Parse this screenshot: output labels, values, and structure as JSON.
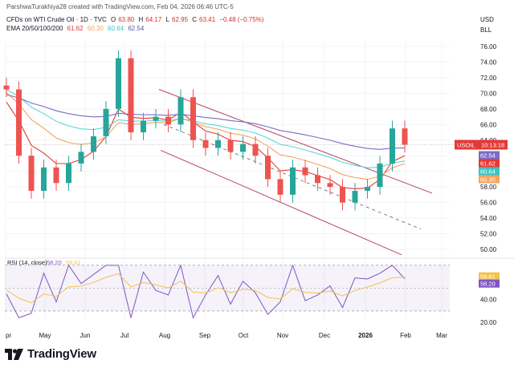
{
  "header": {
    "credit": "ParshwaTurakhiya28 created with TradingView.com, Feb 04, 2026 06:46 UTC-5",
    "symbol": "CFDs on WTI Crude Oil · 1D · TVC",
    "ohlc": [
      {
        "label": "O",
        "value": "63.80"
      },
      {
        "label": "H",
        "value": "64.17"
      },
      {
        "label": "L",
        "value": "62.95"
      },
      {
        "label": "C",
        "value": "63.41"
      }
    ],
    "change": "−0.48 (−0.75%)",
    "ema_label": "EMA 20/50/100/200",
    "ema_values": [
      "61.62",
      "60.30",
      "60.64",
      "62.54"
    ]
  },
  "currency": "USD",
  "currency_unit": "BLL",
  "symbol_tag": "USOIL",
  "last_price": "63.41",
  "countdown": "10:13:18",
  "rsi": {
    "label": "RSI (14, close)",
    "value": "58.20",
    "ma_value": "59.61",
    "ticks": [
      20.0,
      40.0,
      60.0
    ],
    "upper_band": 70,
    "lower_band": 30,
    "mid_band": 50
  },
  "colors": {
    "up": "#26a69a",
    "down": "#ef5350",
    "ema20": "#e53935",
    "ema50": "#f5a35c",
    "ema100": "#5ed6d6",
    "ema200": "#7b6cc4",
    "channel": "#b5475f",
    "rsi_line": "#7e57c2",
    "rsi_ma": "#f5c24a",
    "price_tag": "#e53935"
  },
  "logo": "TradingView",
  "chart_data": {
    "type": "candlestick",
    "title": "CFDs on WTI Crude Oil · 1D · TVC",
    "ylabel": "USD",
    "ylim": [
      48,
      78
    ],
    "y_ticks": [
      50.0,
      52.0,
      54.0,
      56.0,
      58.0,
      60.0,
      62.0,
      64.0,
      66.0,
      68.0,
      70.0,
      72.0,
      74.0,
      76.0
    ],
    "x_ticks": [
      "pr",
      "May",
      "Jun",
      "Jul",
      "Aug",
      "Sep",
      "Oct",
      "Nov",
      "Dec",
      "2026",
      "Feb",
      "Mar"
    ],
    "candles_approx": [
      {
        "month": "Apr",
        "close": 70.5
      },
      {
        "month": "Apr",
        "close": 62.0
      },
      {
        "month": "Apr",
        "close": 57.5
      },
      {
        "month": "Apr",
        "close": 60.5
      },
      {
        "month": "May",
        "close": 58.5
      },
      {
        "month": "May",
        "close": 61.0
      },
      {
        "month": "May",
        "close": 62.5
      },
      {
        "month": "Jun",
        "close": 64.5
      },
      {
        "month": "Jun",
        "close": 68.0
      },
      {
        "month": "Jun",
        "close": 74.5
      },
      {
        "month": "Jun",
        "close": 65.0
      },
      {
        "month": "Jul",
        "close": 66.5
      },
      {
        "month": "Jul",
        "close": 67.0
      },
      {
        "month": "Jul",
        "close": 66.0
      },
      {
        "month": "Aug",
        "close": 69.5
      },
      {
        "month": "Aug",
        "close": 64.0
      },
      {
        "month": "Aug",
        "close": 63.0
      },
      {
        "month": "Sep",
        "close": 64.0
      },
      {
        "month": "Sep",
        "close": 62.5
      },
      {
        "month": "Sep",
        "close": 63.5
      },
      {
        "month": "Oct",
        "close": 62.0
      },
      {
        "month": "Oct",
        "close": 59.0
      },
      {
        "month": "Oct",
        "close": 57.0
      },
      {
        "month": "Nov",
        "close": 60.5
      },
      {
        "month": "Nov",
        "close": 59.5
      },
      {
        "month": "Nov",
        "close": 58.5
      },
      {
        "month": "Dec",
        "close": 58.0
      },
      {
        "month": "Dec",
        "close": 56.0
      },
      {
        "month": "Dec",
        "close": 57.5
      },
      {
        "month": "Jan",
        "close": 58.0
      },
      {
        "month": "Jan",
        "close": 61.0
      },
      {
        "month": "Jan",
        "close": 65.5
      },
      {
        "month": "Feb",
        "close": 63.41
      }
    ],
    "ema": [
      {
        "name": "EMA 20",
        "value": 61.62
      },
      {
        "name": "EMA 50",
        "value": 60.3
      },
      {
        "name": "EMA 100",
        "value": 60.64
      },
      {
        "name": "EMA 200",
        "value": 62.54
      }
    ],
    "rsi_ylim": [
      18,
      72
    ],
    "rsi_last": 58.2,
    "rsi_ma_last": 59.61,
    "grid": true
  }
}
